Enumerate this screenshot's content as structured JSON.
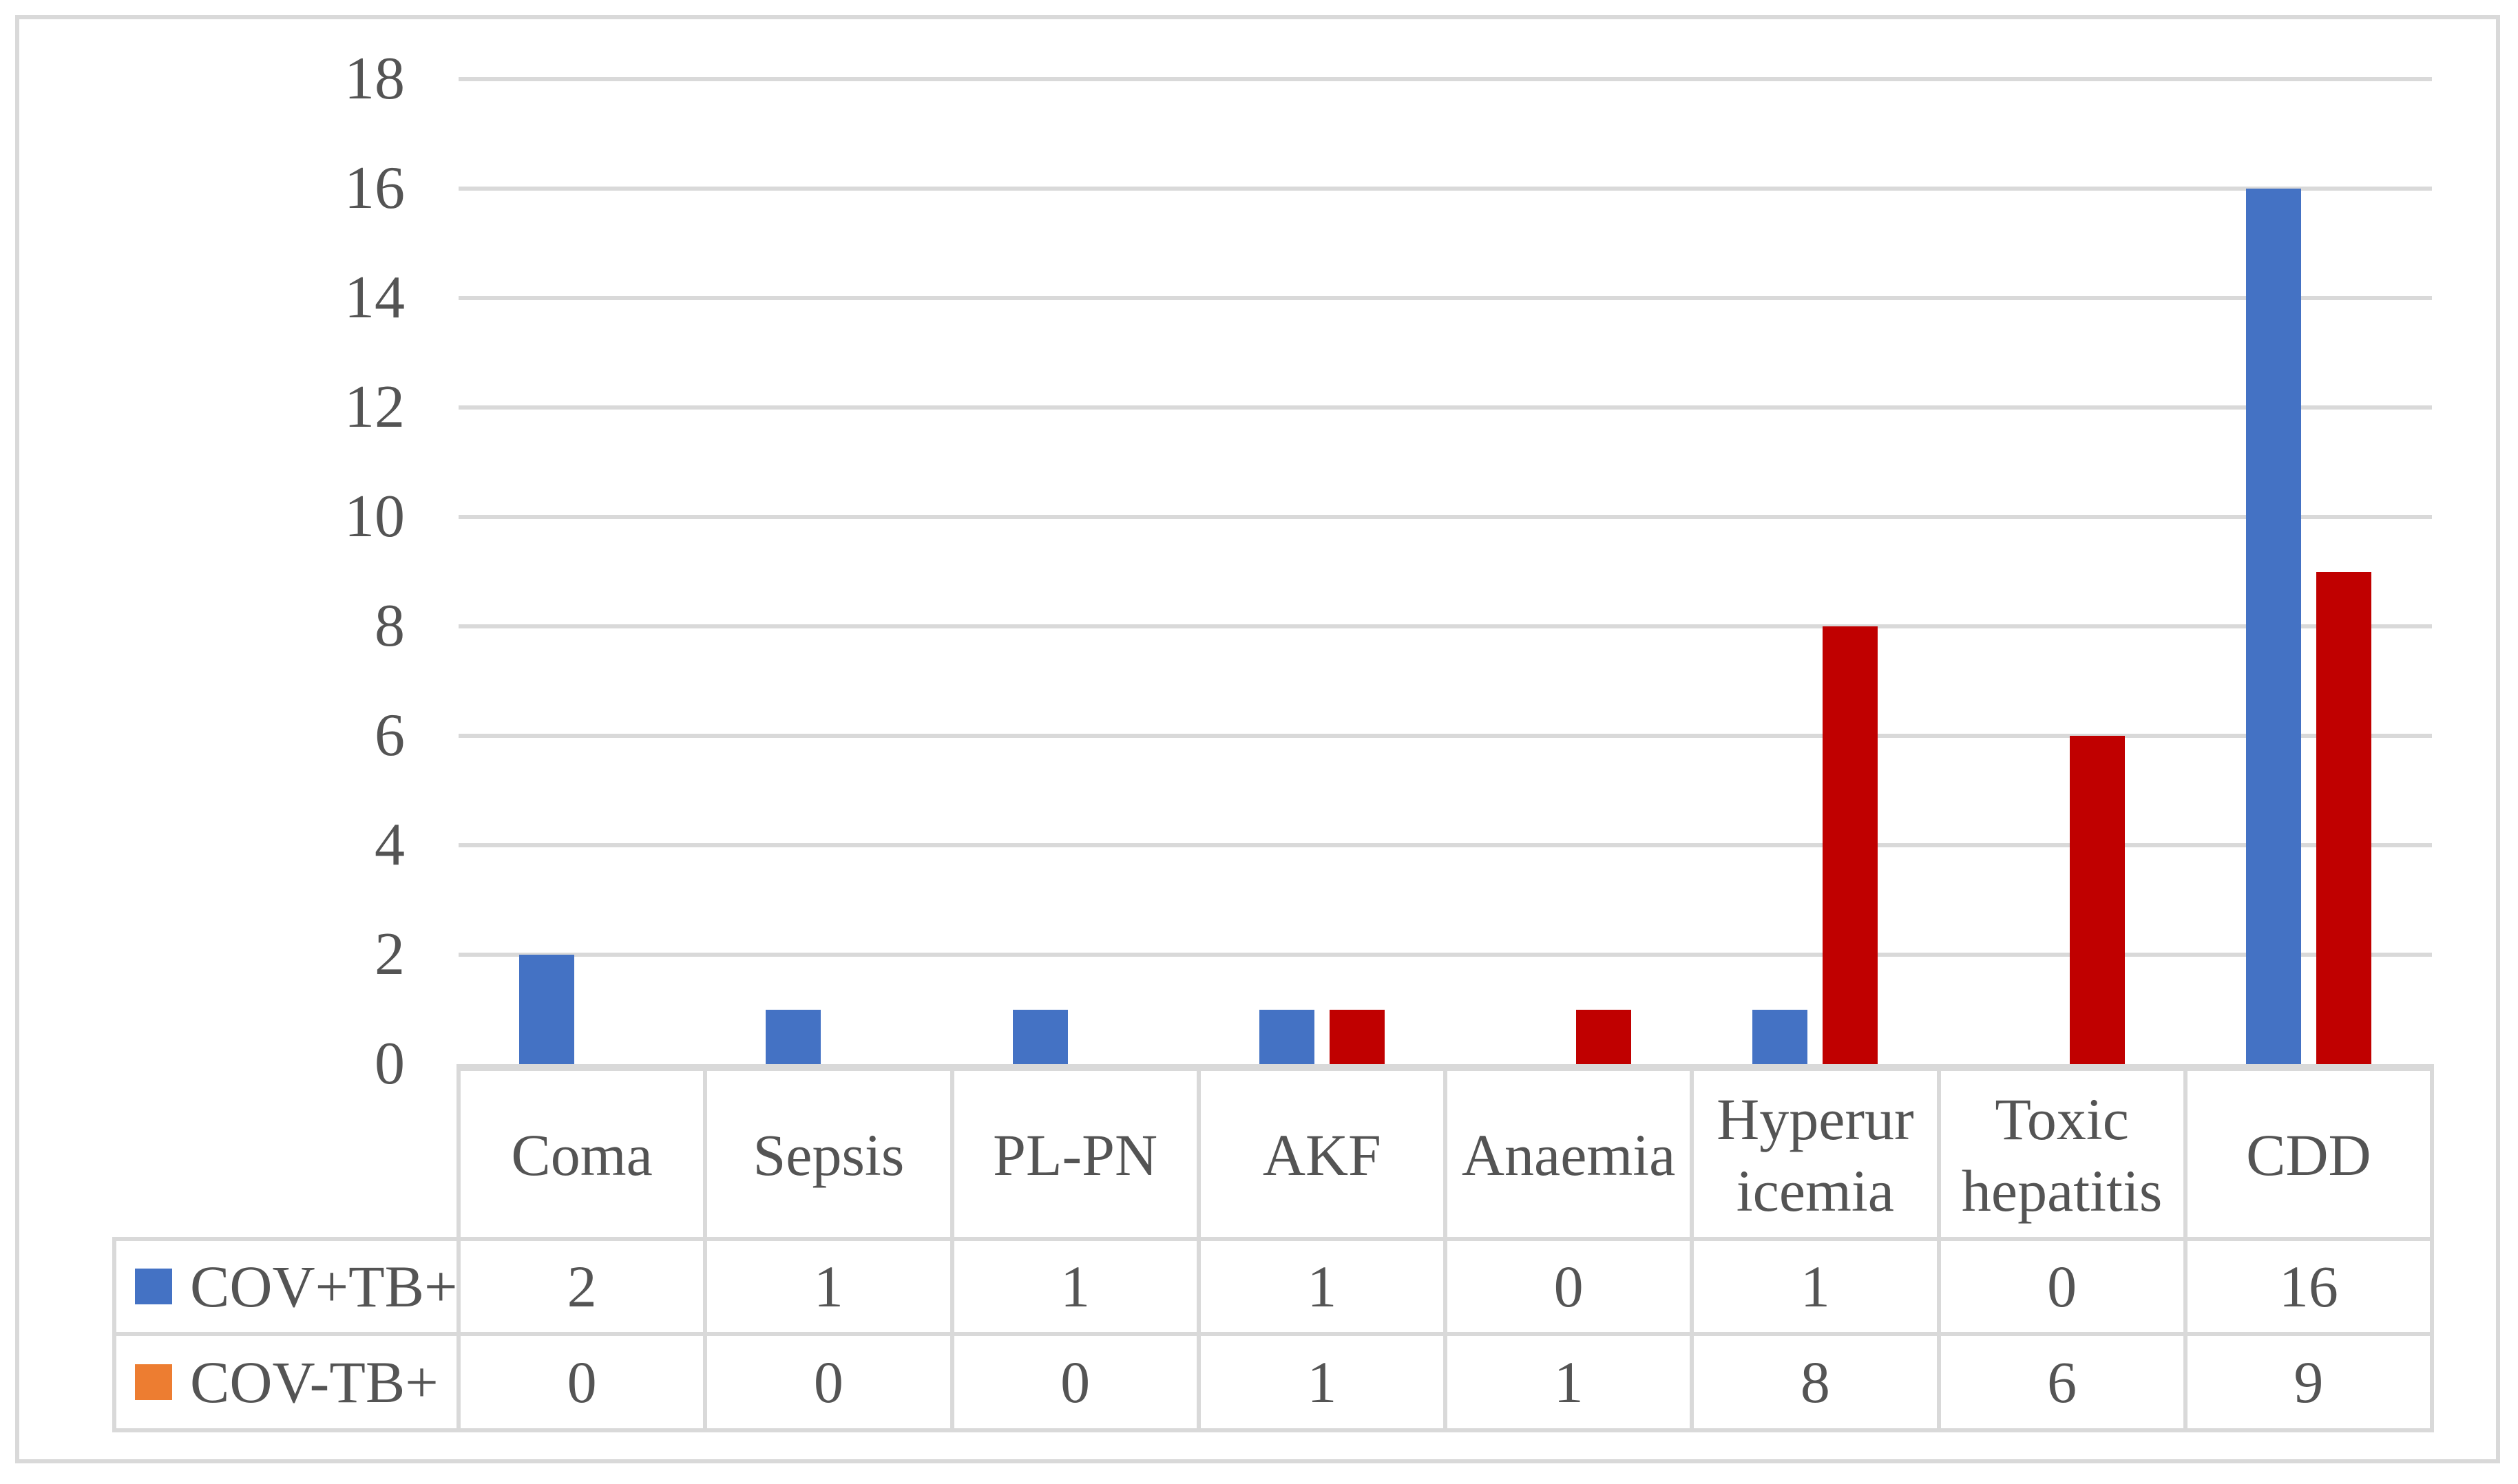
{
  "figure": {
    "background": "#FFFFFF",
    "border_color": "#D9D9D9",
    "gridline_color": "#D9D9D9",
    "text_color": "#545454"
  },
  "chart_data": {
    "type": "bar",
    "title": "",
    "xlabel": "",
    "ylabel": "",
    "ylim": [
      0,
      18
    ],
    "ytick_step": 2,
    "grid": "horizontal",
    "legend_position": "left-of-data-table",
    "yticks": [
      18,
      16,
      14,
      12,
      10,
      8,
      6,
      4,
      2,
      0
    ],
    "categories": [
      "Coma",
      "Sepsis",
      "PL-PN",
      "AKF",
      "Anaemia",
      "Hyperur icemia",
      "Toxic hepatitis",
      "CDD"
    ],
    "series": [
      {
        "name": "COV+TB+",
        "bar_color": "#4472C4",
        "legend_color": "#4472C4",
        "values": [
          2,
          1,
          1,
          1,
          0,
          1,
          0,
          16
        ]
      },
      {
        "name": "COV-TB+",
        "bar_color": "#C00000",
        "legend_color": "#ED7D31",
        "values": [
          0,
          0,
          0,
          1,
          1,
          8,
          6,
          9
        ]
      }
    ]
  }
}
